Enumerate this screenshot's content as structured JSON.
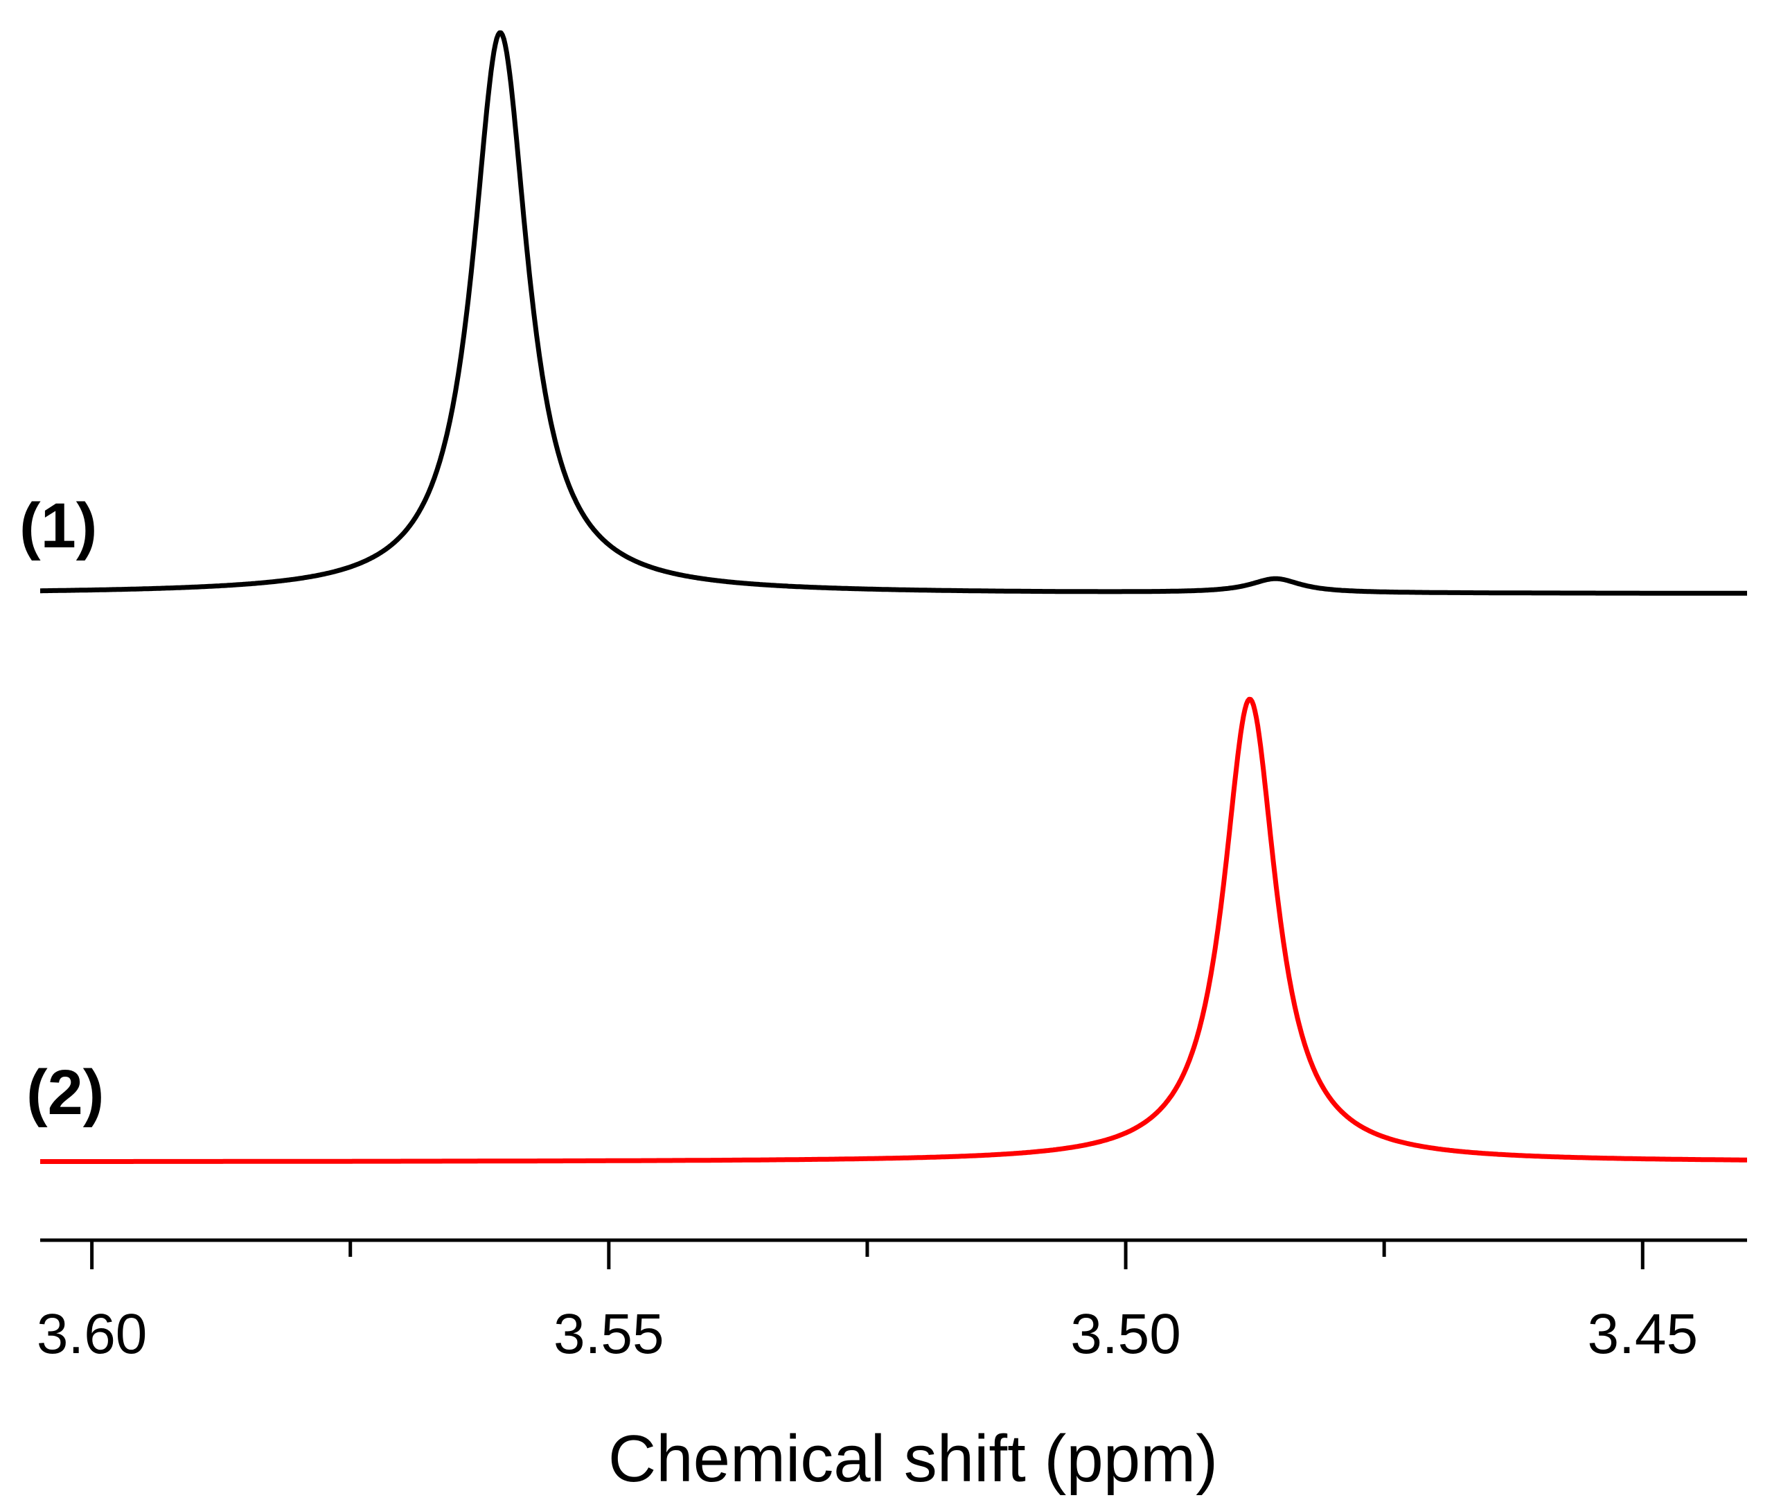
{
  "chart_data": {
    "type": "line",
    "title": "",
    "xlabel": "Chemical shift (ppm)",
    "ylabel": "",
    "xlim": [
      3.605,
      3.4399
    ],
    "x_reversed": true,
    "x_ticks_major": [
      3.6,
      3.55,
      3.5,
      3.45
    ],
    "x_tick_labels": [
      "3.60",
      "3.55",
      "3.50",
      "3.45"
    ],
    "x_ticks_minor": [
      3.575,
      3.525,
      3.475
    ],
    "grid": false,
    "series": [
      {
        "name": "(1)",
        "label": "(1)",
        "color": "#000000",
        "peaks": [
          {
            "center_ppm": 3.5605,
            "relative_height": 1.0,
            "fwhm_ppm": 0.0065
          },
          {
            "center_ppm": 3.4855,
            "relative_height": 0.025,
            "fwhm_ppm": 0.006
          }
        ]
      },
      {
        "name": "(2)",
        "label": "(2)",
        "color": "#ff0000",
        "peaks": [
          {
            "center_ppm": 3.488,
            "relative_height": 1.0,
            "fwhm_ppm": 0.0062
          }
        ]
      }
    ]
  }
}
